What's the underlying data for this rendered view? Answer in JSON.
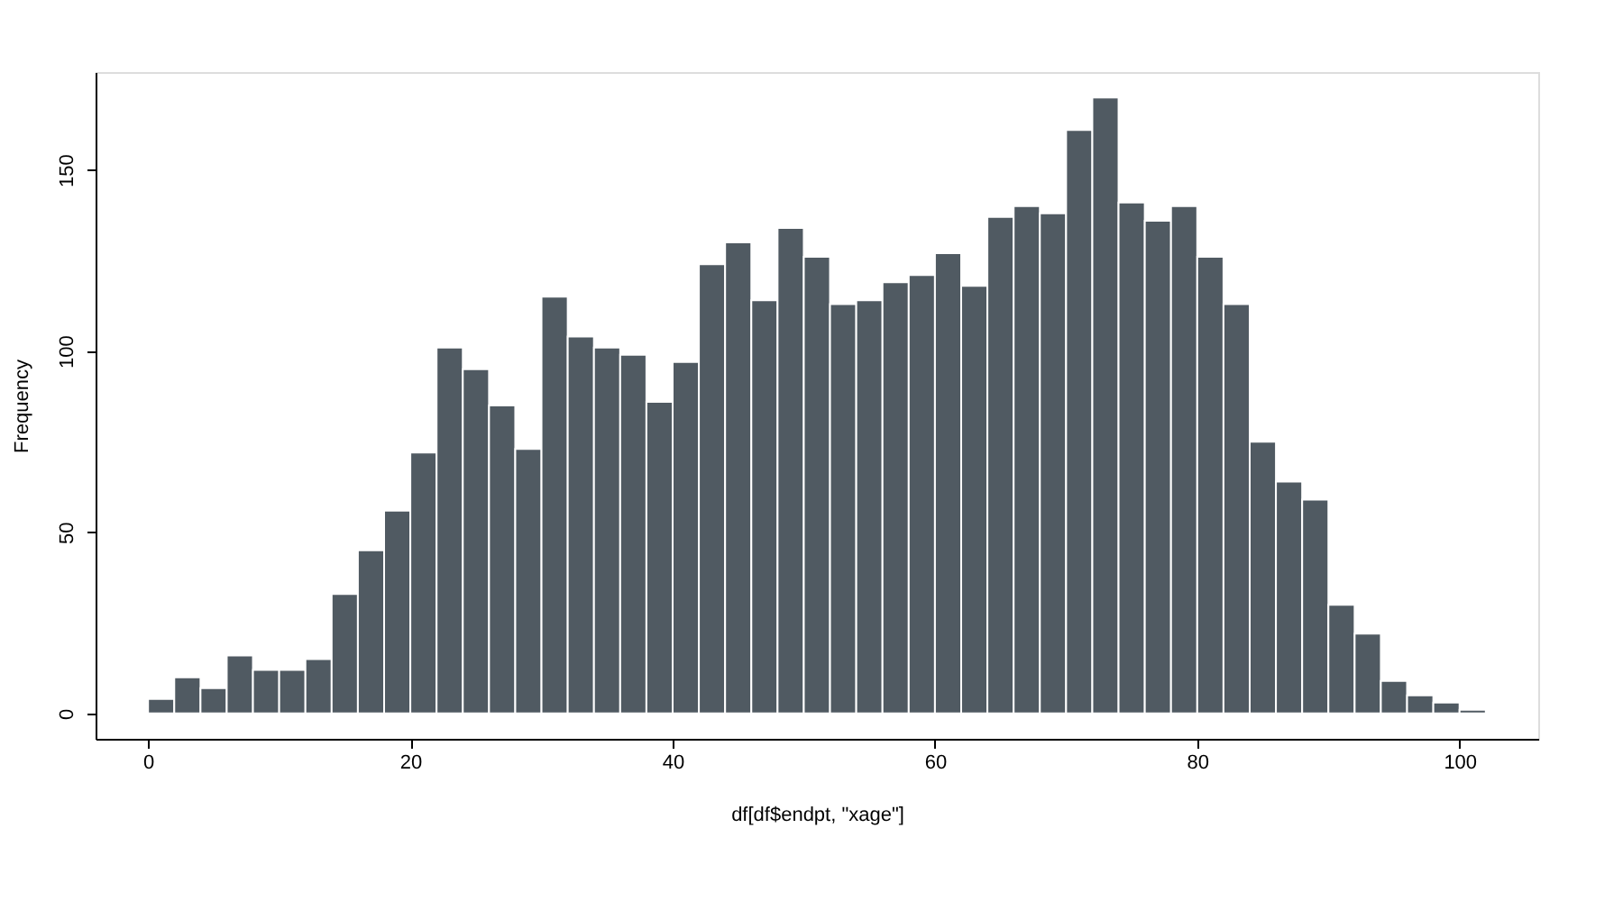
{
  "chart_data": {
    "type": "histogram",
    "xlabel": "df[df$endpt, \"xage\"]",
    "ylabel": "Frequency",
    "bins": [
      0,
      2,
      4,
      6,
      8,
      10,
      12,
      14,
      16,
      18,
      20,
      22,
      24,
      26,
      28,
      30,
      32,
      34,
      36,
      38,
      40,
      42,
      44,
      46,
      48,
      50,
      52,
      54,
      56,
      58,
      60,
      62,
      64,
      66,
      68,
      70,
      72,
      74,
      76,
      78,
      80,
      82,
      84,
      86,
      88,
      90,
      92,
      94,
      96,
      98,
      100,
      102
    ],
    "values": [
      4,
      10,
      7,
      16,
      12,
      12,
      15,
      33,
      45,
      56,
      72,
      101,
      95,
      85,
      73,
      115,
      104,
      101,
      99,
      86,
      97,
      124,
      130,
      114,
      134,
      126,
      113,
      114,
      119,
      121,
      127,
      118,
      137,
      140,
      138,
      161,
      170,
      141,
      136,
      140,
      126,
      113,
      75,
      64,
      59,
      30,
      22,
      9,
      5,
      3,
      1
    ],
    "color": "#505a62",
    "xlim": [
      -4,
      106
    ],
    "ylim": [
      -7,
      177
    ],
    "xticks": [
      0,
      20,
      40,
      60,
      80,
      100
    ],
    "yticks": [
      0,
      50,
      100,
      150
    ],
    "grid": false
  }
}
